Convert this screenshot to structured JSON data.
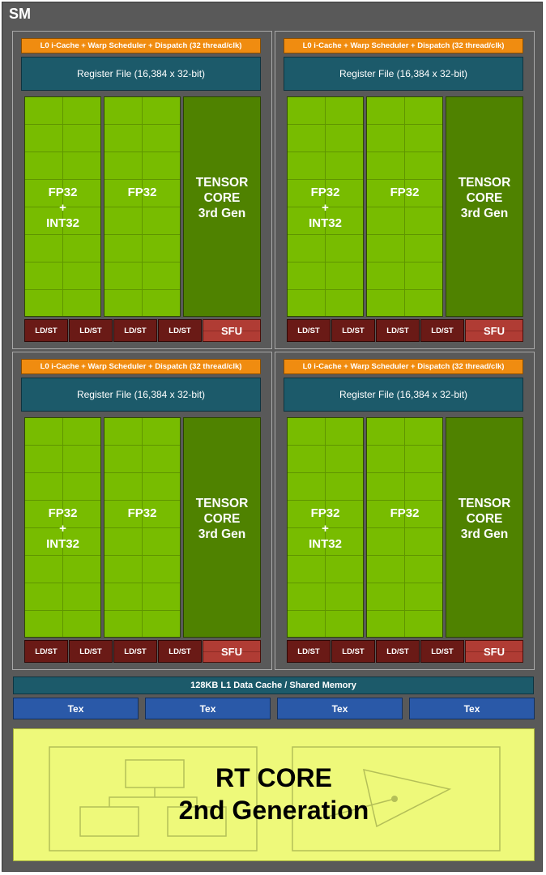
{
  "sm_label": "SM",
  "dispatch_label": "L0 i-Cache + Warp Scheduler + Dispatch (32 thread/clk)",
  "register_file_label": "Register File (16,384 x 32-bit)",
  "fp32_int32": {
    "line1": "FP32",
    "line2": "+",
    "line3": "INT32"
  },
  "fp32_label": "FP32",
  "tensor": {
    "line1": "TENSOR",
    "line2": "CORE",
    "line3": "3rd Gen"
  },
  "ldst_label": "LD/ST",
  "sfu_label": "SFU",
  "l1_label": "128KB L1 Data Cache / Shared Memory",
  "tex_label": "Tex",
  "rt_core": {
    "line1": "RT CORE",
    "line2": "2nd Generation"
  },
  "colors": {
    "sm_background": "#595959",
    "dispatch": "#f08c10",
    "register_file": "#1c5a6a",
    "cuda_core": "#78bc00",
    "tensor_core": "#4f8200",
    "ldst": "#6a1a16",
    "sfu": "#b03c34",
    "tex": "#2a59a8",
    "rt_core": "#eef97a"
  }
}
